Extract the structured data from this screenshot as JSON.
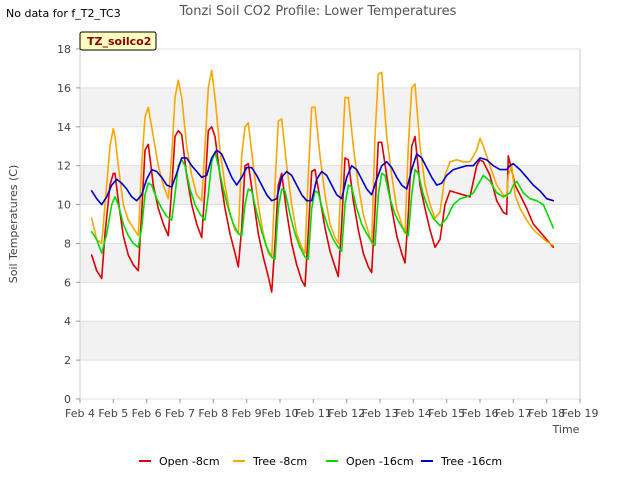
{
  "header": {
    "no_data_note": "No data for f_T2_TC3",
    "badge_label": "TZ_soilco2"
  },
  "chart_data": {
    "type": "line",
    "title": "Tonzi Soil CO2 Profile: Lower Temperatures",
    "xlabel": "Time",
    "ylabel": "Soil Temperatures (C)",
    "xlim": [
      4,
      19
    ],
    "ylim": [
      0,
      18
    ],
    "x_ticks": [
      {
        "value": 4,
        "label": "Feb 4"
      },
      {
        "value": 5,
        "label": "Feb 5"
      },
      {
        "value": 6,
        "label": "Feb 6"
      },
      {
        "value": 7,
        "label": "Feb 7"
      },
      {
        "value": 8,
        "label": "Feb 8"
      },
      {
        "value": 9,
        "label": "Feb 9"
      },
      {
        "value": 10,
        "label": "Feb 10"
      },
      {
        "value": 11,
        "label": "Feb 11"
      },
      {
        "value": 12,
        "label": "Feb 12"
      },
      {
        "value": 13,
        "label": "Feb 13"
      },
      {
        "value": 14,
        "label": "Feb 14"
      },
      {
        "value": 15,
        "label": "Feb 15"
      },
      {
        "value": 16,
        "label": "Feb 16"
      },
      {
        "value": 17,
        "label": "Feb 17"
      },
      {
        "value": 18,
        "label": "Feb 18"
      },
      {
        "value": 19,
        "label": "Feb 19"
      }
    ],
    "y_ticks": [
      0,
      2,
      4,
      6,
      8,
      10,
      12,
      14,
      16,
      18
    ],
    "grid": "horizontal bands",
    "legend_position": "bottom",
    "series": [
      {
        "name": "Open -8cm",
        "color": "#dd0000",
        "x": [
          4.35,
          4.5,
          4.65,
          4.75,
          4.9,
          5.0,
          5.05,
          5.15,
          5.3,
          5.45,
          5.6,
          5.75,
          5.85,
          5.95,
          6.05,
          6.2,
          6.35,
          6.5,
          6.65,
          6.75,
          6.85,
          6.95,
          7.05,
          7.2,
          7.35,
          7.5,
          7.65,
          7.75,
          7.85,
          7.95,
          8.05,
          8.2,
          8.35,
          8.5,
          8.65,
          8.75,
          8.85,
          8.95,
          9.05,
          9.2,
          9.35,
          9.5,
          9.65,
          9.75,
          9.85,
          9.95,
          10.05,
          10.2,
          10.35,
          10.5,
          10.65,
          10.75,
          10.85,
          10.95,
          11.05,
          11.2,
          11.35,
          11.5,
          11.65,
          11.75,
          11.85,
          11.95,
          12.05,
          12.2,
          12.35,
          12.5,
          12.65,
          12.75,
          12.85,
          12.95,
          13.05,
          13.2,
          13.35,
          13.5,
          13.65,
          13.75,
          13.85,
          13.95,
          14.05,
          14.2,
          14.35,
          14.5,
          14.65,
          14.8,
          14.95,
          15.1,
          15.3,
          15.5,
          15.7,
          15.9,
          16.0,
          16.1,
          16.3,
          16.5,
          16.7,
          16.8,
          16.85,
          16.95,
          17.05,
          17.2,
          17.4,
          17.6,
          17.8,
          18.0,
          18.2
        ],
        "y": [
          7.4,
          6.6,
          6.2,
          8.5,
          11.0,
          11.6,
          11.6,
          10.2,
          8.4,
          7.4,
          6.9,
          6.6,
          9.6,
          12.8,
          13.1,
          11.0,
          9.8,
          9.0,
          8.4,
          10.8,
          13.5,
          13.8,
          13.6,
          11.5,
          10.0,
          9.0,
          8.3,
          10.8,
          13.8,
          14.0,
          13.5,
          11.5,
          9.8,
          8.5,
          7.5,
          6.8,
          8.8,
          12.0,
          12.1,
          10.3,
          8.5,
          7.3,
          6.3,
          5.5,
          8.0,
          11.0,
          11.6,
          9.6,
          8.0,
          6.9,
          6.1,
          5.8,
          8.6,
          11.7,
          11.8,
          10.3,
          8.8,
          7.6,
          6.8,
          6.3,
          9.0,
          12.4,
          12.3,
          10.2,
          8.7,
          7.5,
          6.8,
          6.5,
          9.7,
          13.2,
          13.2,
          11.5,
          9.8,
          8.4,
          7.5,
          7.0,
          9.5,
          13.0,
          13.5,
          11.0,
          9.8,
          8.7,
          7.8,
          8.2,
          10.0,
          10.7,
          10.6,
          10.5,
          10.4,
          12.0,
          12.3,
          12.2,
          11.5,
          10.2,
          9.6,
          9.5,
          12.5,
          11.8,
          11.0,
          10.5,
          9.8,
          9.0,
          8.6,
          8.2,
          7.8
        ]
      },
      {
        "name": "Tree -8cm",
        "color": "#ffa500",
        "x": [
          4.35,
          4.5,
          4.65,
          4.75,
          4.9,
          5.0,
          5.05,
          5.15,
          5.3,
          5.45,
          5.6,
          5.75,
          5.85,
          5.95,
          6.05,
          6.2,
          6.35,
          6.5,
          6.65,
          6.75,
          6.85,
          6.95,
          7.05,
          7.2,
          7.35,
          7.5,
          7.65,
          7.75,
          7.85,
          7.95,
          8.05,
          8.2,
          8.35,
          8.5,
          8.65,
          8.75,
          8.85,
          8.95,
          9.05,
          9.2,
          9.35,
          9.5,
          9.65,
          9.75,
          9.85,
          9.95,
          10.05,
          10.2,
          10.35,
          10.5,
          10.65,
          10.75,
          10.85,
          10.95,
          11.05,
          11.2,
          11.35,
          11.5,
          11.65,
          11.75,
          11.85,
          11.95,
          12.05,
          12.2,
          12.35,
          12.5,
          12.65,
          12.75,
          12.85,
          12.95,
          13.05,
          13.2,
          13.35,
          13.5,
          13.65,
          13.75,
          13.85,
          13.95,
          14.05,
          14.2,
          14.35,
          14.5,
          14.65,
          14.8,
          14.95,
          15.1,
          15.3,
          15.5,
          15.7,
          15.9,
          16.0,
          16.1,
          16.3,
          16.5,
          16.7,
          16.8,
          16.85,
          16.95,
          17.05,
          17.2,
          17.4,
          17.6,
          17.8,
          18.0,
          18.2
        ],
        "y": [
          9.3,
          8.2,
          8.0,
          10.0,
          13.0,
          13.9,
          13.5,
          12.0,
          10.0,
          9.2,
          8.8,
          8.4,
          12.0,
          14.5,
          15.0,
          13.5,
          12.0,
          11.0,
          10.3,
          12.5,
          15.5,
          16.4,
          15.5,
          13.0,
          11.5,
          10.5,
          10.2,
          13.0,
          16.0,
          16.9,
          15.5,
          12.8,
          11.0,
          9.5,
          8.7,
          8.5,
          12.5,
          14.0,
          14.2,
          12.0,
          10.0,
          8.5,
          7.5,
          7.3,
          11.0,
          14.3,
          14.4,
          12.0,
          10.0,
          8.5,
          7.8,
          7.5,
          11.5,
          15.0,
          15.0,
          12.5,
          10.5,
          9.0,
          8.3,
          8.0,
          12.0,
          15.5,
          15.5,
          13.0,
          11.0,
          9.5,
          8.6,
          8.0,
          13.5,
          16.7,
          16.8,
          13.5,
          11.5,
          9.8,
          9.0,
          8.5,
          13.0,
          16.0,
          16.2,
          13.0,
          11.0,
          10.0,
          9.3,
          9.6,
          11.5,
          12.2,
          12.3,
          12.2,
          12.2,
          12.8,
          13.4,
          13.0,
          12.0,
          11.0,
          10.5,
          10.4,
          11.5,
          12.0,
          10.5,
          9.8,
          9.2,
          8.7,
          8.4,
          8.1,
          7.9
        ]
      },
      {
        "name": "Open -16cm",
        "color": "#00dd00",
        "x": [
          4.35,
          4.5,
          4.65,
          4.8,
          4.95,
          5.05,
          5.15,
          5.3,
          5.45,
          5.6,
          5.75,
          5.85,
          5.95,
          6.05,
          6.15,
          6.3,
          6.45,
          6.6,
          6.75,
          6.85,
          6.95,
          7.05,
          7.15,
          7.3,
          7.45,
          7.6,
          7.75,
          7.85,
          7.95,
          8.05,
          8.15,
          8.3,
          8.45,
          8.6,
          8.75,
          8.85,
          8.95,
          9.05,
          9.15,
          9.3,
          9.45,
          9.6,
          9.75,
          9.85,
          9.95,
          10.05,
          10.15,
          10.3,
          10.45,
          10.6,
          10.75,
          10.85,
          10.95,
          11.05,
          11.15,
          11.3,
          11.45,
          11.6,
          11.75,
          11.85,
          11.95,
          12.05,
          12.15,
          12.3,
          12.45,
          12.6,
          12.75,
          12.85,
          12.95,
          13.05,
          13.15,
          13.3,
          13.45,
          13.6,
          13.75,
          13.85,
          13.95,
          14.05,
          14.15,
          14.3,
          14.45,
          14.6,
          14.8,
          15.0,
          15.2,
          15.4,
          15.6,
          15.8,
          16.0,
          16.1,
          16.3,
          16.5,
          16.7,
          16.9,
          17.0,
          17.1,
          17.3,
          17.5,
          17.7,
          17.9,
          18.1,
          18.2
        ],
        "y": [
          8.6,
          8.2,
          7.5,
          8.5,
          10.0,
          10.4,
          10.0,
          9.0,
          8.4,
          8.0,
          7.8,
          8.8,
          10.5,
          11.1,
          11.0,
          10.3,
          9.8,
          9.4,
          9.2,
          10.5,
          12.0,
          12.3,
          12.0,
          10.8,
          10.0,
          9.5,
          9.2,
          10.5,
          12.2,
          12.7,
          12.0,
          10.8,
          9.8,
          9.0,
          8.5,
          8.4,
          10.0,
          10.8,
          10.7,
          9.6,
          8.6,
          7.8,
          7.3,
          7.2,
          9.8,
          10.8,
          10.7,
          9.5,
          8.5,
          7.8,
          7.3,
          7.2,
          9.8,
          10.7,
          10.6,
          9.6,
          8.8,
          8.2,
          7.8,
          7.6,
          10.0,
          11.0,
          10.9,
          9.8,
          9.0,
          8.5,
          8.1,
          7.9,
          10.5,
          11.6,
          11.5,
          10.3,
          9.5,
          9.0,
          8.6,
          8.4,
          10.5,
          11.8,
          11.6,
          10.5,
          9.8,
          9.3,
          8.9,
          9.3,
          10.0,
          10.3,
          10.4,
          10.6,
          11.2,
          11.5,
          11.2,
          10.6,
          10.4,
          10.6,
          11.0,
          11.2,
          10.6,
          10.3,
          10.2,
          10.0,
          9.2,
          8.8
        ]
      },
      {
        "name": "Tree -16cm",
        "color": "#0000cc",
        "x": [
          4.35,
          4.5,
          4.65,
          4.8,
          4.95,
          5.1,
          5.25,
          5.4,
          5.55,
          5.7,
          5.85,
          6.0,
          6.15,
          6.3,
          6.45,
          6.6,
          6.75,
          6.9,
          7.05,
          7.2,
          7.35,
          7.5,
          7.65,
          7.8,
          7.95,
          8.1,
          8.25,
          8.4,
          8.55,
          8.7,
          8.85,
          9.0,
          9.15,
          9.3,
          9.45,
          9.6,
          9.75,
          9.9,
          10.05,
          10.2,
          10.35,
          10.5,
          10.65,
          10.8,
          10.95,
          11.1,
          11.25,
          11.4,
          11.55,
          11.7,
          11.85,
          12.0,
          12.15,
          12.3,
          12.45,
          12.6,
          12.75,
          12.9,
          13.05,
          13.2,
          13.35,
          13.5,
          13.65,
          13.8,
          13.95,
          14.1,
          14.25,
          14.4,
          14.55,
          14.7,
          14.85,
          15.0,
          15.2,
          15.4,
          15.6,
          15.8,
          16.0,
          16.2,
          16.4,
          16.6,
          16.8,
          16.9,
          17.0,
          17.2,
          17.4,
          17.6,
          17.8,
          18.0,
          18.2
        ],
        "y": [
          10.7,
          10.3,
          10.0,
          10.4,
          11.0,
          11.3,
          11.1,
          10.8,
          10.4,
          10.2,
          10.5,
          11.3,
          11.8,
          11.7,
          11.4,
          11.0,
          10.9,
          11.6,
          12.4,
          12.4,
          12.0,
          11.7,
          11.4,
          11.5,
          12.4,
          12.8,
          12.6,
          12.0,
          11.4,
          11.0,
          11.4,
          11.9,
          11.9,
          11.5,
          11.0,
          10.5,
          10.2,
          10.3,
          11.4,
          11.7,
          11.5,
          11.0,
          10.5,
          10.2,
          10.2,
          11.3,
          11.7,
          11.5,
          11.0,
          10.5,
          10.3,
          11.4,
          12.0,
          11.8,
          11.3,
          10.8,
          10.5,
          11.3,
          12.0,
          12.2,
          11.9,
          11.4,
          11.0,
          10.8,
          11.8,
          12.6,
          12.4,
          11.9,
          11.4,
          11.0,
          11.1,
          11.5,
          11.8,
          11.9,
          12.0,
          12.0,
          12.4,
          12.3,
          12.0,
          11.8,
          11.8,
          12.0,
          12.1,
          11.8,
          11.4,
          11.0,
          10.7,
          10.3,
          10.2
        ]
      }
    ]
  }
}
